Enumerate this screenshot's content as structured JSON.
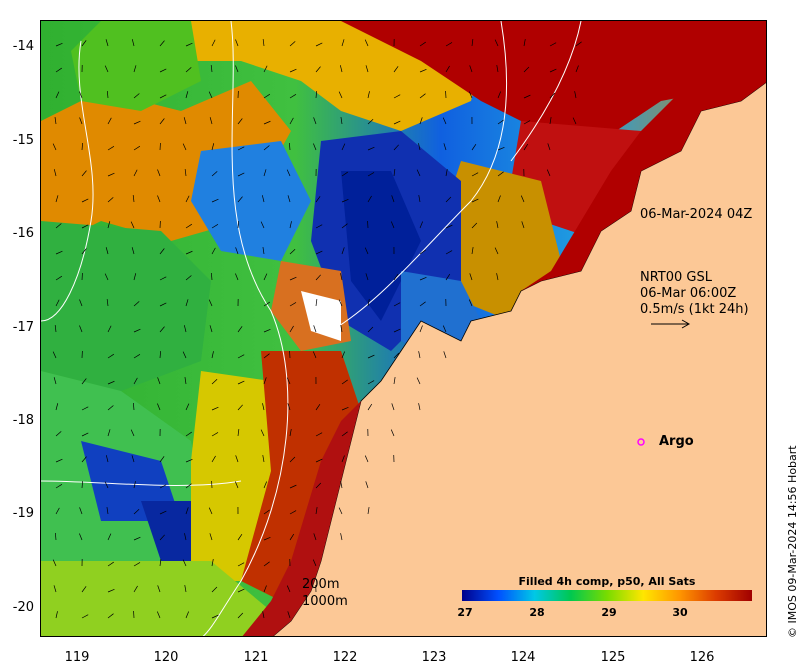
{
  "map": {
    "y_ticks": [
      "-14",
      "-15",
      "-16",
      "-17",
      "-18",
      "-19",
      "-20"
    ],
    "x_ticks": [
      "119",
      "120",
      "121",
      "122",
      "123",
      "124",
      "125",
      "126"
    ],
    "lat_range": [
      -20.1,
      -13.5
    ],
    "lon_range": [
      118.6,
      126.7
    ]
  },
  "annotations": {
    "timestamp": "06-Mar-2024 04Z",
    "gsl_line1": "NRT00 GSL",
    "gsl_line2": "06-Mar 06:00Z",
    "gsl_line3": "0.5m/s (1kt 24h)",
    "argo_label": "Argo",
    "contour_200": "200m",
    "contour_1000": "1000m"
  },
  "colorbar": {
    "title": "Filled 4h comp, p50, All Sats",
    "ticks": [
      "27",
      "28",
      "29",
      "30"
    ],
    "range": [
      27,
      31
    ],
    "colors": [
      "#00008b",
      "#0050ff",
      "#00c8e6",
      "#00c850",
      "#78dc00",
      "#ffe600",
      "#ff9600",
      "#dc3c00",
      "#a00000"
    ]
  },
  "copyright": "© IMOS 09-Mar-2024 14:56 Hobart",
  "colors": {
    "land": "#fcc896",
    "argo_marker": "#ff00ff",
    "contour": "#ffffff"
  }
}
